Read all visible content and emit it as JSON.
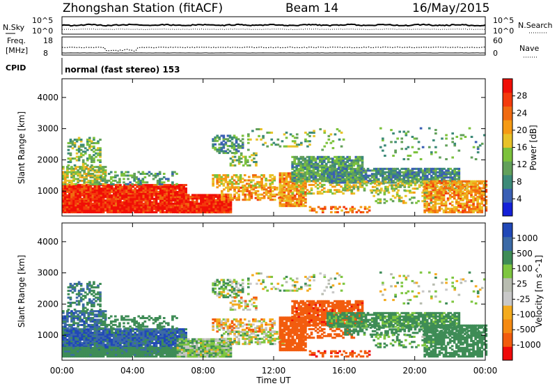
{
  "header": {
    "station": "Zhongshan Station (fitACF)",
    "beam": "Beam 14",
    "date": "16/May/2015"
  },
  "panels": {
    "nsky_label": "N.Sky",
    "nsearch_label": "N.Search",
    "nsky_ticks": [
      "10^5",
      "10^0"
    ],
    "nsearch_ticks": [
      "10^5",
      "10^0"
    ],
    "freq_label_1": "Freq.",
    "freq_label_2": "[MHz]",
    "freq_ticks": [
      "18",
      "8"
    ],
    "nave_label": "Nave",
    "nave_ticks": [
      "60",
      "0"
    ],
    "cpid_label": "CPID",
    "cpid_value": "normal (fast stereo) 153"
  },
  "colors": {
    "power": [
      "#1420d8",
      "#3a5fb4",
      "#3c8a78",
      "#62a05a",
      "#7cc23c",
      "#e8c228",
      "#f59a14",
      "#f06a10",
      "#f43a0c",
      "#f00e06"
    ],
    "velocity": [
      "#ef0a0a",
      "#f25c0e",
      "#f58a12",
      "#f4ab1e",
      "#c8c8c8",
      "#b8bcb0",
      "#7ec640",
      "#3e8c56",
      "#3c6aa6",
      "#2048b8"
    ]
  },
  "chart_data": [
    {
      "type": "heatmap",
      "title": "",
      "xlabel": "Time UT",
      "ylabel": "Slant Range [km]",
      "x_ticks": [
        "00:00",
        "04:00",
        "08:00",
        "12:00",
        "16:00",
        "20:00",
        "00:00"
      ],
      "y_ticks": [
        "1000",
        "2000",
        "3000",
        "4000"
      ],
      "ylim": [
        200,
        4600
      ],
      "colorbar_label": "Power [dB]",
      "colorbar_ticks": [
        "4",
        "8",
        "12",
        "16",
        "20",
        "24",
        "28"
      ],
      "colorbar_range": [
        0,
        30
      ]
    },
    {
      "type": "heatmap",
      "title": "",
      "xlabel": "Time UT",
      "ylabel": "Slant Range [km]",
      "x_ticks": [
        "00:00",
        "04:00",
        "08:00",
        "12:00",
        "16:00",
        "20:00",
        "00:00"
      ],
      "y_ticks": [
        "1000",
        "2000",
        "3000",
        "4000"
      ],
      "ylim": [
        200,
        4600
      ],
      "colorbar_label": "Velocity [m s^-1]",
      "colorbar_ticks": [
        "1000",
        "500",
        "100",
        "25",
        "-25",
        "-100",
        "-500",
        "-1000"
      ],
      "colorbar_range": [
        -1000,
        1000
      ]
    }
  ],
  "xaxis_label": "Time UT"
}
